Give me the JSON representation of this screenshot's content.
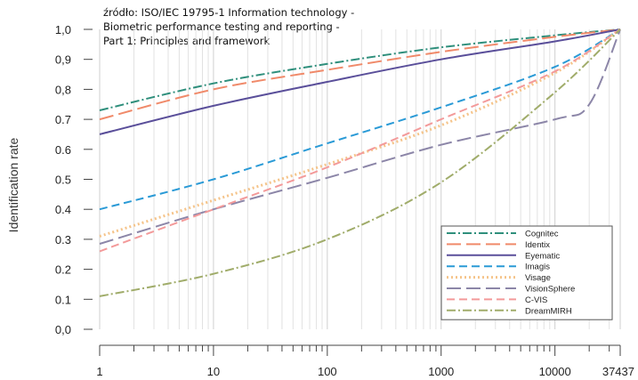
{
  "source_note": [
    "źródło: ISO/IEC 19795-1 Information technology -",
    "Biometric performance testing and reporting -",
    "Part 1: Principles and framework"
  ],
  "chart_data": {
    "type": "line",
    "title": "",
    "xlabel": "",
    "ylabel": "Identification rate",
    "xscale": "log",
    "xlim": [
      1,
      37437
    ],
    "ylim": [
      0,
      1
    ],
    "x_ticks": [
      {
        "value": 1,
        "label": "1"
      },
      {
        "value": 10,
        "label": "10"
      },
      {
        "value": 100,
        "label": "100"
      },
      {
        "value": 1000,
        "label": "1000"
      },
      {
        "value": 10000,
        "label": "10000"
      },
      {
        "value": 37437,
        "label": "37437"
      }
    ],
    "y_ticks": [
      {
        "value": 0,
        "label": "0,0"
      },
      {
        "value": 0.1,
        "label": "0.1"
      },
      {
        "value": 0.2,
        "label": "0.2"
      },
      {
        "value": 0.3,
        "label": "0.3"
      },
      {
        "value": 0.4,
        "label": "0.4"
      },
      {
        "value": 0.5,
        "label": "0.5"
      },
      {
        "value": 0.6,
        "label": "0.6"
      },
      {
        "value": 0.7,
        "label": "0.7"
      },
      {
        "value": 0.8,
        "label": "0,8"
      },
      {
        "value": 0.9,
        "label": "0,9"
      },
      {
        "value": 1.0,
        "label": "1,0"
      }
    ],
    "grid": "vertical minor log grid",
    "legend_position": "bottom-right",
    "series": [
      {
        "name": "Cognitec",
        "color": "#2f8f7c",
        "dash": "dashdot",
        "x": [
          1,
          10,
          100,
          1000,
          10000,
          37437
        ],
        "y": [
          0.73,
          0.82,
          0.885,
          0.94,
          0.98,
          1.0
        ]
      },
      {
        "name": "Identix",
        "color": "#f08a6a",
        "dash": "longdash",
        "x": [
          1,
          10,
          100,
          1000,
          10000,
          37437
        ],
        "y": [
          0.7,
          0.8,
          0.865,
          0.925,
          0.975,
          1.0
        ]
      },
      {
        "name": "Eyematic",
        "color": "#5a4f9a",
        "dash": "solid",
        "x": [
          1,
          10,
          100,
          1000,
          10000,
          37437
        ],
        "y": [
          0.65,
          0.745,
          0.825,
          0.9,
          0.96,
          1.0
        ]
      },
      {
        "name": "Imagis",
        "color": "#2a9ad6",
        "dash": "dashed",
        "x": [
          1,
          10,
          100,
          1000,
          10000,
          37437
        ],
        "y": [
          0.4,
          0.5,
          0.62,
          0.74,
          0.875,
          1.0
        ]
      },
      {
        "name": "Visage",
        "color": "#f5c48a",
        "dash": "dotted",
        "x": [
          1,
          10,
          100,
          1000,
          10000,
          37437
        ],
        "y": [
          0.31,
          0.43,
          0.55,
          0.68,
          0.855,
          1.0
        ]
      },
      {
        "name": "VisionSphere",
        "color": "#8c86a8",
        "dash": "longdash",
        "x": [
          1,
          10,
          100,
          1000,
          10000,
          20000,
          37437
        ],
        "y": [
          0.285,
          0.4,
          0.505,
          0.615,
          0.7,
          0.75,
          1.0
        ]
      },
      {
        "name": "C-VIS",
        "color": "#f39a9a",
        "dash": "dashed",
        "x": [
          1,
          10,
          100,
          1000,
          10000,
          37437
        ],
        "y": [
          0.26,
          0.4,
          0.54,
          0.7,
          0.86,
          1.0
        ]
      },
      {
        "name": "DreamMIRH",
        "color": "#a0ac6a",
        "dash": "dashdot",
        "x": [
          1,
          10,
          100,
          1000,
          10000,
          37437
        ],
        "y": [
          0.11,
          0.185,
          0.3,
          0.49,
          0.79,
          1.0
        ]
      }
    ]
  }
}
